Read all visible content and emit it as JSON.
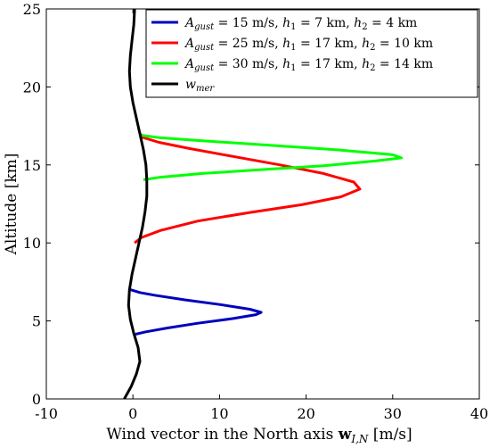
{
  "chart_data": {
    "type": "line",
    "xlabel": "Wind vector in the North axis w_{I,N} [m/s]",
    "xlabel_main": "Wind vector in the North axis ",
    "xlabel_symbol": "w",
    "xlabel_sub": "I,N",
    "xlabel_unit": " [m/s]",
    "ylabel": "Altitude [km]",
    "xlim": [
      -10,
      40
    ],
    "ylim": [
      0,
      25
    ],
    "xticks": [
      -10,
      0,
      10,
      20,
      30,
      40
    ],
    "yticks": [
      0,
      5,
      10,
      15,
      20,
      25
    ],
    "grid": false,
    "legend_position": "top-right",
    "series": [
      {
        "name": "A_gust = 15 m/s,  h1 = 7 km, h2 = 4 km",
        "legend": {
          "a_sub": "gust",
          "a_val": " = 15 m/s,  ",
          "h1_val": " = 7 km, ",
          "h2_val": " = 4 km"
        },
        "color": "#0000bf",
        "points": [
          [
            0.3,
            4.15
          ],
          [
            1.5,
            4.3
          ],
          [
            4.0,
            4.55
          ],
          [
            7.5,
            4.85
          ],
          [
            11.5,
            5.15
          ],
          [
            14.2,
            5.4
          ],
          [
            14.8,
            5.55
          ],
          [
            13.5,
            5.75
          ],
          [
            10.0,
            6.05
          ],
          [
            6.0,
            6.35
          ],
          [
            2.5,
            6.65
          ],
          [
            0.8,
            6.82
          ],
          [
            -0.3,
            7.0
          ]
        ]
      },
      {
        "name": "A_gust = 25 m/s,  h1 = 17 km, h2 = 10 km",
        "legend": {
          "a_sub": "gust",
          "a_val": " = 25 m/s,  ",
          "h1_val": " = 17 km, ",
          "h2_val": " = 10 km"
        },
        "color": "#ff0000",
        "points": [
          [
            0.2,
            10.0
          ],
          [
            1.0,
            10.35
          ],
          [
            3.2,
            10.8
          ],
          [
            7.5,
            11.4
          ],
          [
            13.5,
            11.95
          ],
          [
            19.5,
            12.45
          ],
          [
            24.0,
            12.95
          ],
          [
            26.2,
            13.45
          ],
          [
            25.5,
            13.9
          ],
          [
            22.0,
            14.45
          ],
          [
            17.0,
            15.0
          ],
          [
            11.5,
            15.55
          ],
          [
            6.5,
            16.05
          ],
          [
            3.0,
            16.45
          ],
          [
            1.2,
            16.75
          ],
          [
            0.8,
            17.0
          ]
        ]
      },
      {
        "name": "A_gust = 30 m/s,  h1 = 17 km, h2 = 14 km",
        "legend": {
          "a_sub": "gust",
          "a_val": " = 30 m/s,  ",
          "h1_val": " = 17 km, ",
          "h2_val": " = 14 km"
        },
        "color": "#00ff00",
        "points": [
          [
            1.2,
            14.05
          ],
          [
            3.0,
            14.2
          ],
          [
            8.0,
            14.45
          ],
          [
            15.0,
            14.7
          ],
          [
            22.0,
            14.95
          ],
          [
            28.0,
            15.25
          ],
          [
            31.0,
            15.45
          ],
          [
            30.0,
            15.65
          ],
          [
            24.0,
            15.95
          ],
          [
            16.0,
            16.25
          ],
          [
            8.0,
            16.55
          ],
          [
            3.0,
            16.75
          ],
          [
            1.0,
            16.9
          ]
        ]
      },
      {
        "name": "w_mer",
        "legend": {
          "sym": "w",
          "sub": "mer"
        },
        "color": "#000000",
        "points": [
          [
            -1.0,
            0
          ],
          [
            -0.2,
            0.8
          ],
          [
            0.4,
            1.6
          ],
          [
            0.8,
            2.4
          ],
          [
            0.6,
            3.3
          ],
          [
            0.1,
            4.2
          ],
          [
            -0.3,
            5.1
          ],
          [
            -0.5,
            6.0
          ],
          [
            -0.4,
            7.0
          ],
          [
            -0.1,
            8.0
          ],
          [
            0.3,
            9.0
          ],
          [
            0.7,
            10.0
          ],
          [
            1.1,
            11.0
          ],
          [
            1.4,
            12.0
          ],
          [
            1.6,
            13.0
          ],
          [
            1.6,
            14.0
          ],
          [
            1.5,
            15.0
          ],
          [
            1.2,
            16.0
          ],
          [
            0.8,
            17.0
          ],
          [
            0.4,
            18.0
          ],
          [
            0.0,
            19.0
          ],
          [
            -0.3,
            20.0
          ],
          [
            -0.4,
            21.0
          ],
          [
            -0.3,
            22.0
          ],
          [
            -0.1,
            23.0
          ],
          [
            0.1,
            24.0
          ],
          [
            0.2,
            25.0
          ]
        ]
      }
    ]
  }
}
